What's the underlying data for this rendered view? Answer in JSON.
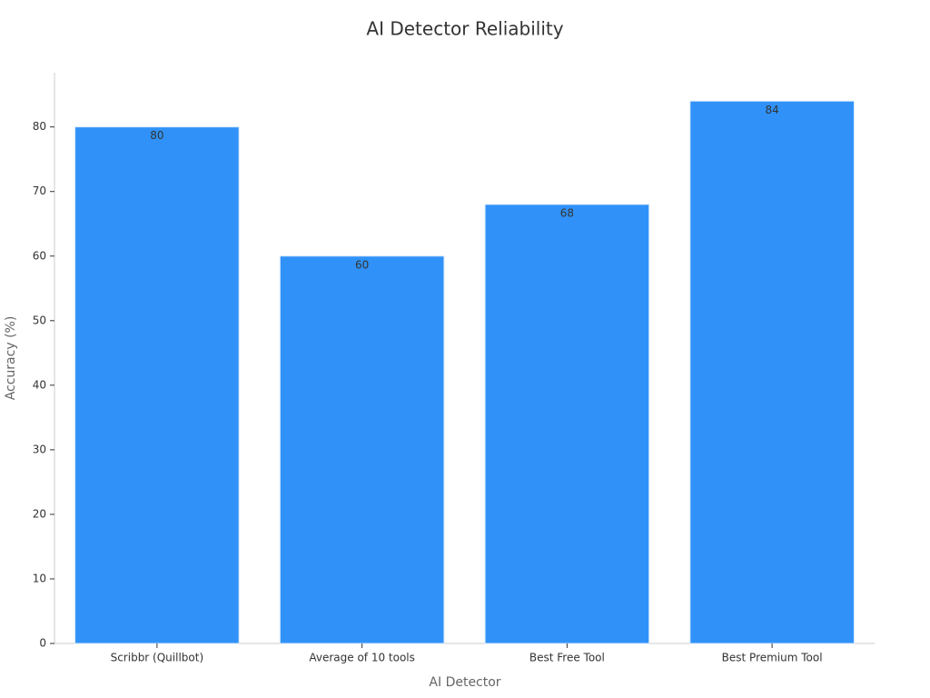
{
  "chart_data": {
    "type": "bar",
    "title": "AI Detector Reliability",
    "x_label": "AI Detector",
    "y_label": "Accuracy (%)",
    "categories": [
      "Scribbr (Quillbot)",
      "Average of 10 tools",
      "Best Free Tool",
      "Best Premium Tool"
    ],
    "values": [
      80,
      60,
      68,
      84
    ],
    "color": "#3092f8",
    "ylim": [
      0,
      88.4
    ],
    "yticks": [
      0,
      10,
      20,
      30,
      40,
      50,
      60,
      70,
      80
    ],
    "grid": false
  }
}
